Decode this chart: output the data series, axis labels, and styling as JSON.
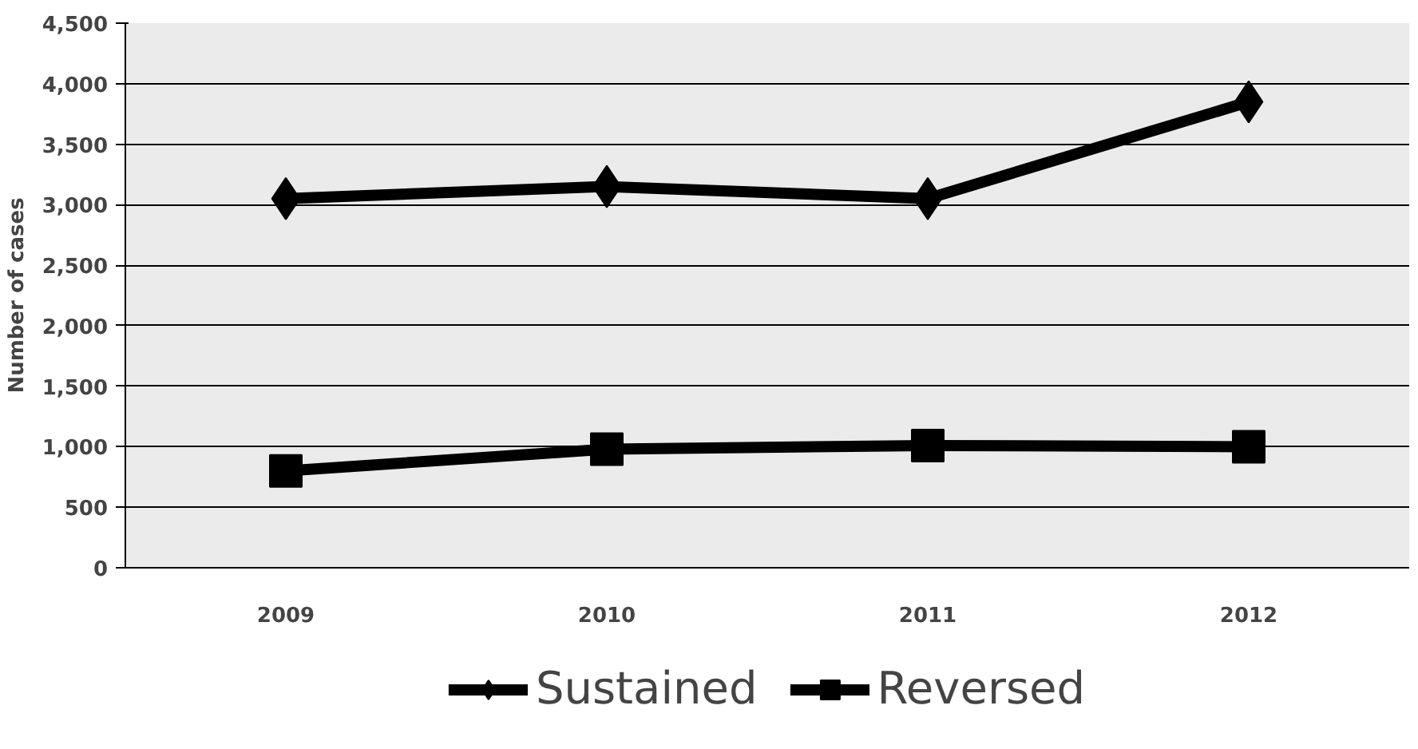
{
  "chart_data": {
    "type": "line",
    "ylabel": "Number of cases",
    "categories": [
      "2009",
      "2010",
      "2011",
      "2012"
    ],
    "series": [
      {
        "name": "Sustained",
        "color": "#000000",
        "values": [
          3050,
          3150,
          3050,
          3850
        ],
        "marker": "diamond"
      },
      {
        "name": "Reversed",
        "color": "#000000",
        "values": [
          800,
          980,
          1010,
          1000
        ],
        "marker": "square"
      }
    ],
    "ylim": [
      0,
      4500
    ],
    "yticks": [
      {
        "value": 0,
        "label": "0"
      },
      {
        "value": 500,
        "label": "500"
      },
      {
        "value": 1000,
        "label": "1,000"
      },
      {
        "value": 1500,
        "label": "1,500"
      },
      {
        "value": 2000,
        "label": "2,000"
      },
      {
        "value": 2500,
        "label": "2,500"
      },
      {
        "value": 3000,
        "label": "3,000"
      },
      {
        "value": 3500,
        "label": "3,500"
      },
      {
        "value": 4000,
        "label": "4,000"
      },
      {
        "value": 4500,
        "label": "4,500"
      }
    ],
    "grid": "y",
    "legend": "bottom",
    "line_style": "solid"
  }
}
